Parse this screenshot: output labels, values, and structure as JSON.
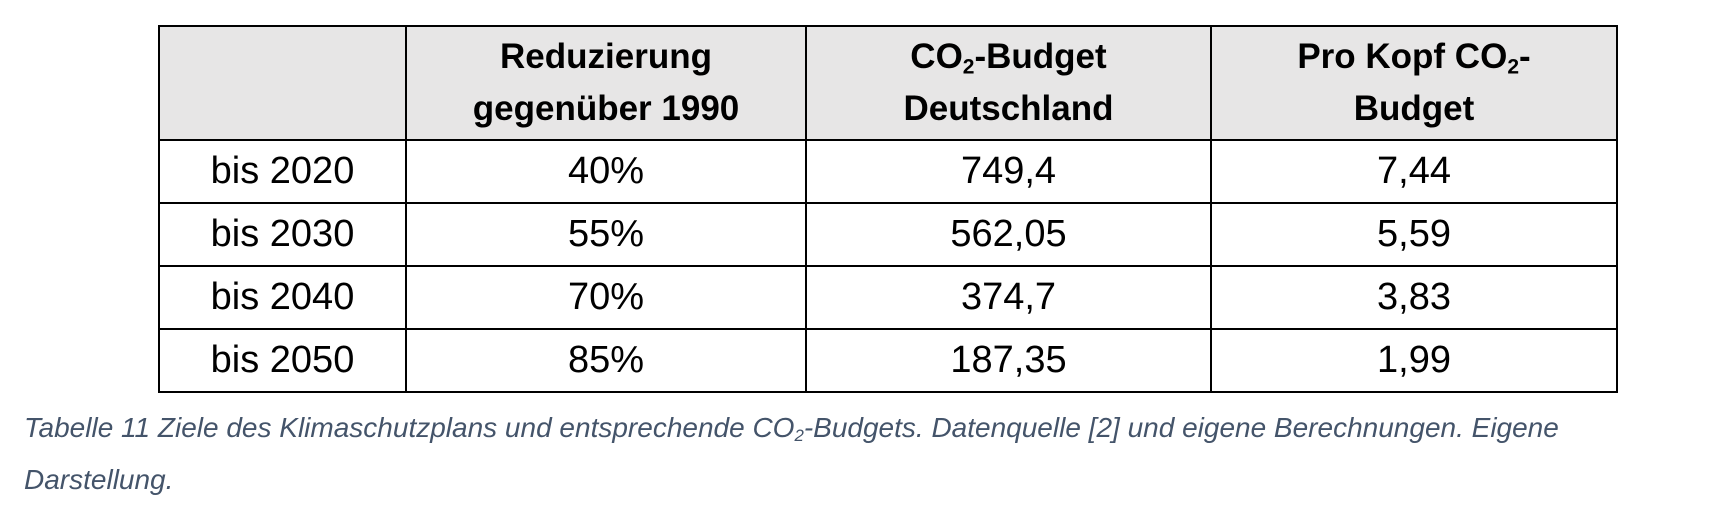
{
  "table": {
    "headers": [
      {
        "line1": "",
        "line2": ""
      },
      {
        "line1": "Reduzierung",
        "line2": "gegenüber 1990"
      },
      {
        "pre": "CO",
        "sub": "2",
        "post": "-Budget",
        "line2": "Deutschland"
      },
      {
        "pre": "Pro Kopf CO",
        "sub": "2",
        "post": "-",
        "line2": "Budget"
      }
    ],
    "rows": [
      [
        "bis 2020",
        "40%",
        "749,4",
        "7,44"
      ],
      [
        "bis 2030",
        "55%",
        "562,05",
        "5,59"
      ],
      [
        "bis 2040",
        "70%",
        "374,7",
        "3,83"
      ],
      [
        "bis 2050",
        "85%",
        "187,35",
        "1,99"
      ]
    ]
  },
  "caption": {
    "part1": "Tabelle 11 Ziele des Klimaschutzplans und entsprechende CO",
    "sub": "2",
    "part2": "-Budgets. Datenquelle [2] und eigene Berechnungen. Eigene Darstellung."
  }
}
